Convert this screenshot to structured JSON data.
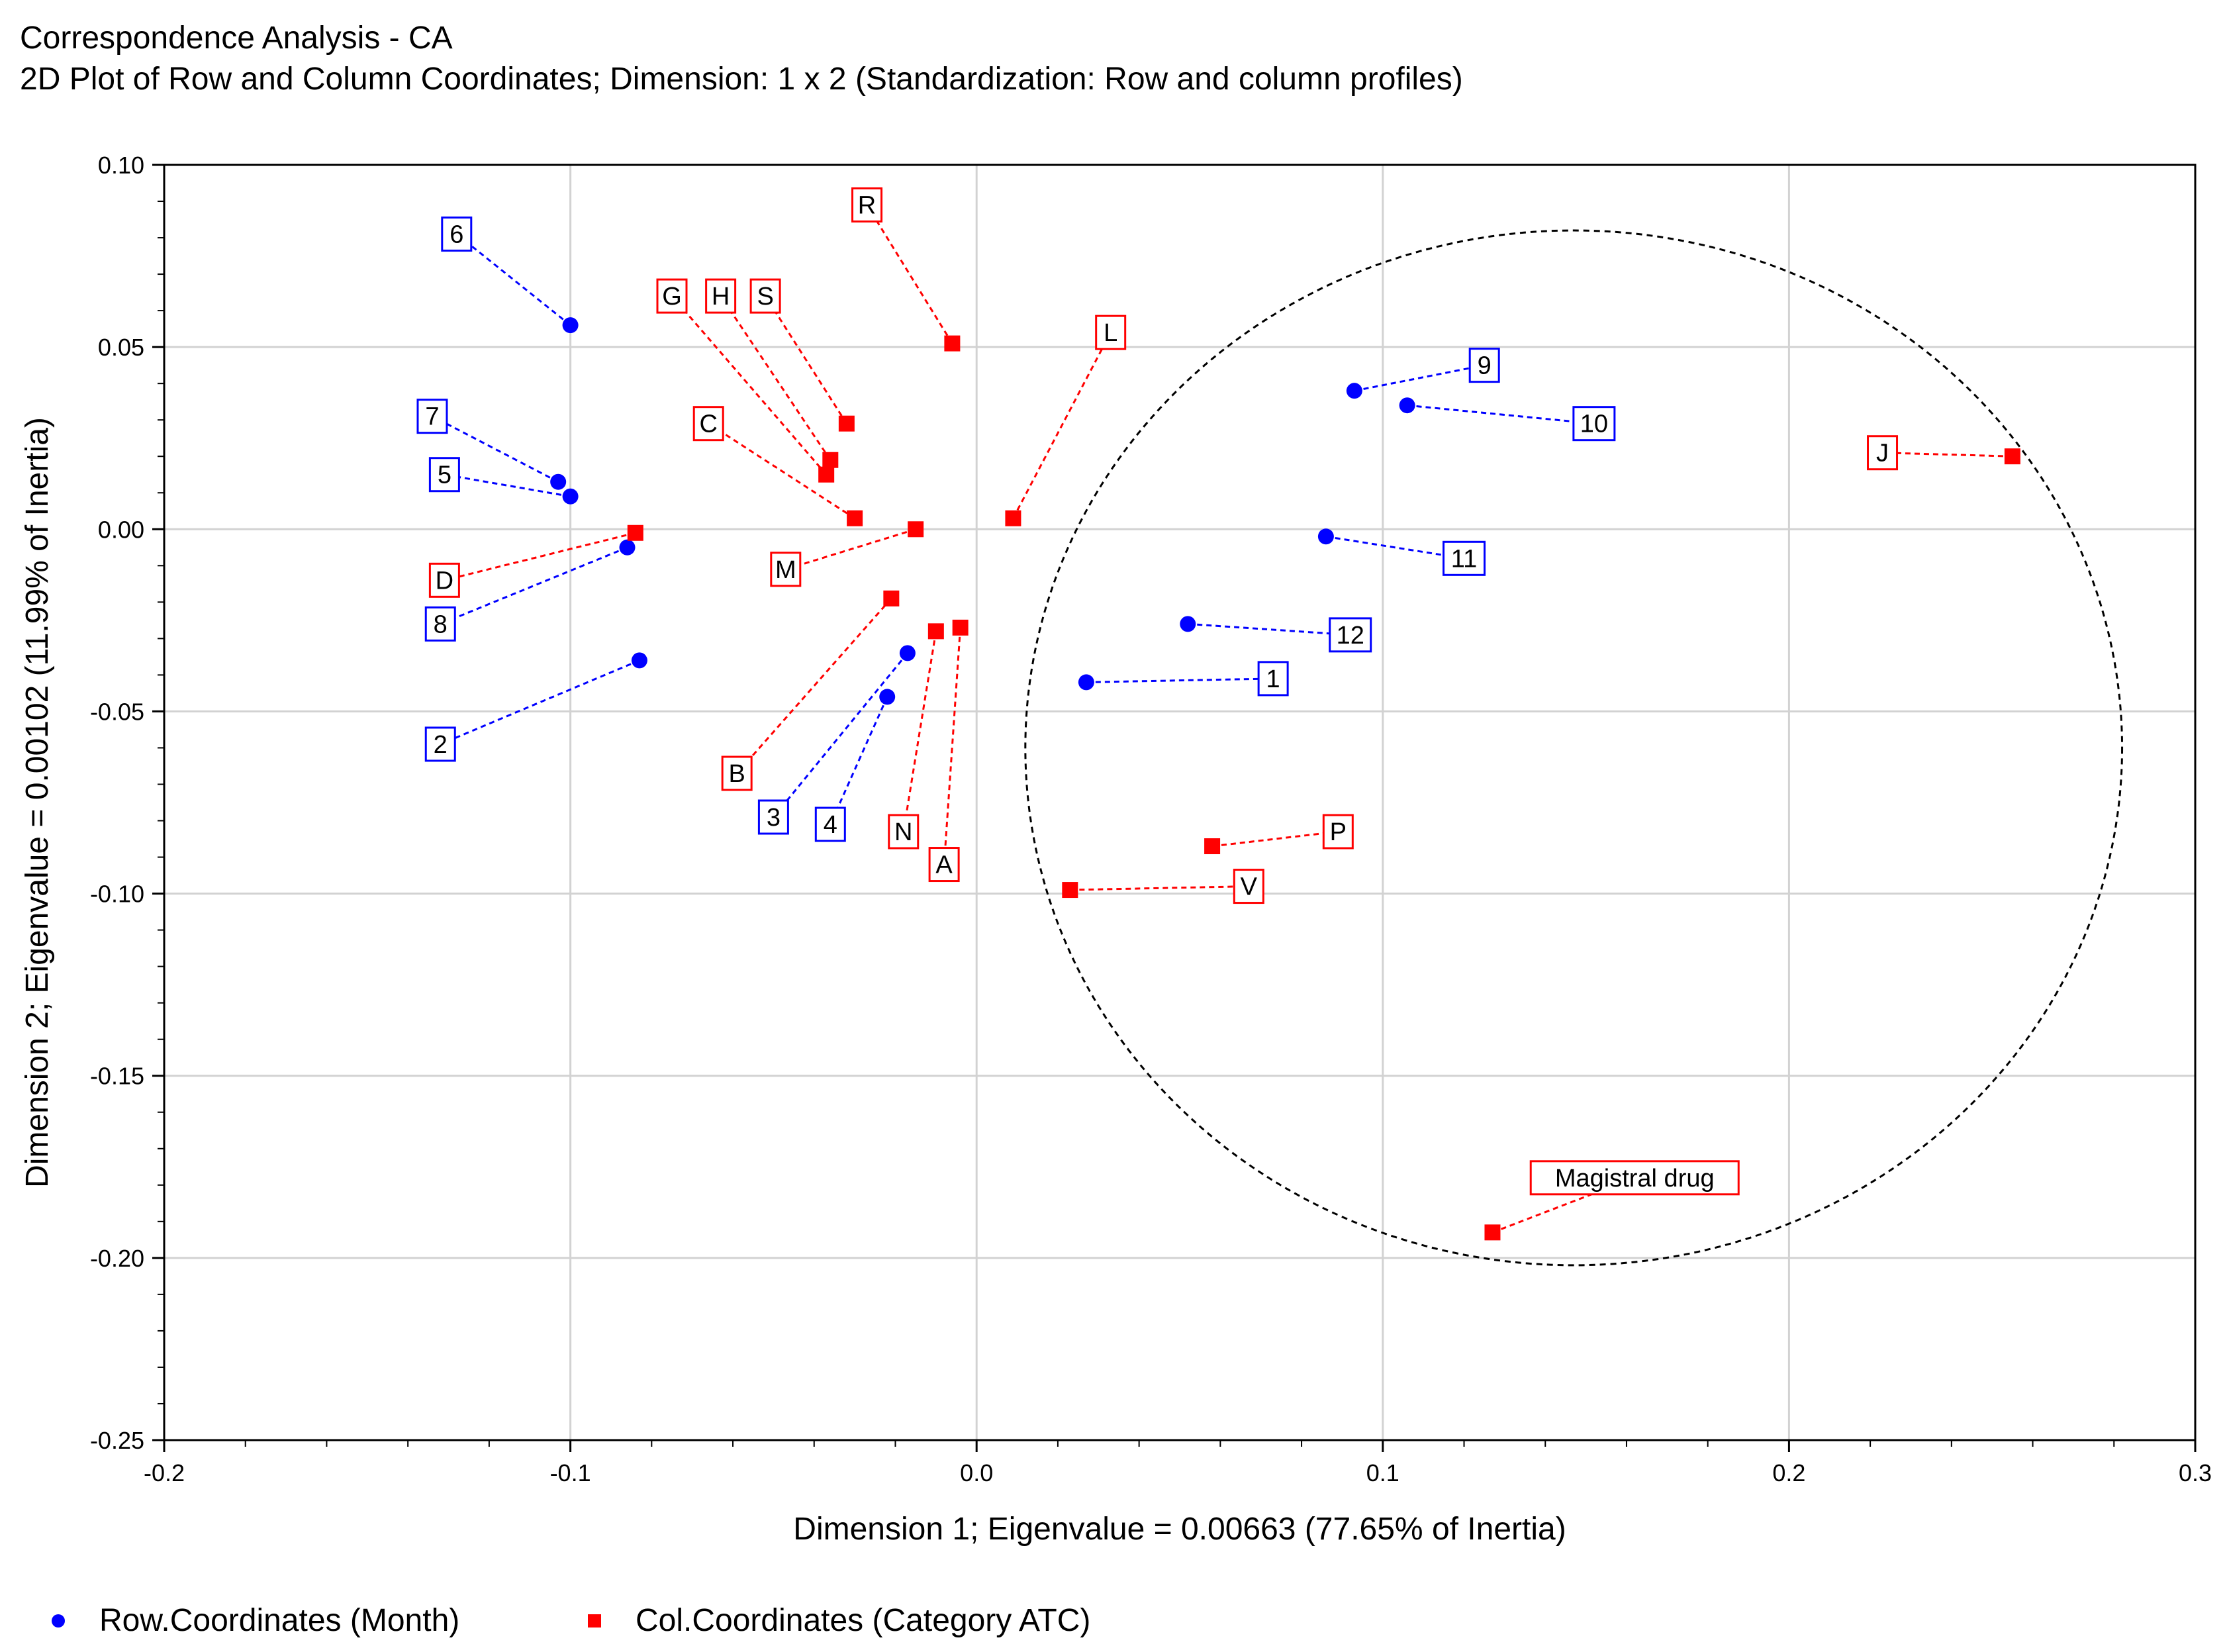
{
  "chart_data": {
    "type": "scatter",
    "title": "Correspondence Analysis - CA",
    "subtitle": "2D Plot of Row and Column Coordinates; Dimension: 1 x 2 (Standardization: Row and column profiles)",
    "xlabel": "Dimension 1; Eigenvalue =  0.00663 (77.65%  of Inertia)",
    "ylabel": "Dimension 2; Eigenvalue = 0.00102 (11.99% of Inertia)",
    "xlim": [
      -0.2,
      0.3
    ],
    "ylim": [
      -0.25,
      0.1
    ],
    "x_ticks": [
      "-0.2",
      "-0.1",
      "0.0",
      "0.1",
      "0.2",
      "0.3"
    ],
    "y_ticks": [
      "0.10",
      "0.05",
      "0.00",
      "-0.05",
      "-0.10",
      "-0.15",
      "-0.20",
      "-0.25"
    ],
    "grid": true,
    "series": [
      {
        "name": "Row.Coordinates (Month)",
        "marker": "circle",
        "color": "#0000ff",
        "points": [
          {
            "label": "1",
            "x": 0.027,
            "y": -0.042,
            "lx": 0.073,
            "ly": -0.041
          },
          {
            "label": "2",
            "x": -0.083,
            "y": -0.036,
            "lx": -0.132,
            "ly": -0.059
          },
          {
            "label": "3",
            "x": -0.017,
            "y": -0.034,
            "lx": -0.05,
            "ly": -0.079
          },
          {
            "label": "4",
            "x": -0.022,
            "y": -0.046,
            "lx": -0.036,
            "ly": -0.081
          },
          {
            "label": "5",
            "x": -0.1,
            "y": 0.009,
            "lx": -0.131,
            "ly": 0.015
          },
          {
            "label": "6",
            "x": -0.1,
            "y": 0.056,
            "lx": -0.128,
            "ly": 0.081
          },
          {
            "label": "7",
            "x": -0.103,
            "y": 0.013,
            "lx": -0.134,
            "ly": 0.031
          },
          {
            "label": "8",
            "x": -0.086,
            "y": -0.005,
            "lx": -0.132,
            "ly": -0.026
          },
          {
            "label": "9",
            "x": 0.093,
            "y": 0.038,
            "lx": 0.125,
            "ly": 0.045
          },
          {
            "label": "10",
            "x": 0.106,
            "y": 0.034,
            "lx": 0.152,
            "ly": 0.029
          },
          {
            "label": "11",
            "x": 0.086,
            "y": -0.002,
            "lx": 0.12,
            "ly": -0.008
          },
          {
            "label": "12",
            "x": 0.052,
            "y": -0.026,
            "lx": 0.092,
            "ly": -0.029
          }
        ]
      },
      {
        "name": "Col.Coordinates (Category ATC)",
        "marker": "square",
        "color": "#ff0000",
        "points": [
          {
            "label": "A",
            "x": -0.004,
            "y": -0.027,
            "lx": -0.008,
            "ly": -0.092
          },
          {
            "label": "B",
            "x": -0.021,
            "y": -0.019,
            "lx": -0.059,
            "ly": -0.067
          },
          {
            "label": "C",
            "x": -0.03,
            "y": 0.003,
            "lx": -0.066,
            "ly": 0.029
          },
          {
            "label": "D",
            "x": -0.084,
            "y": -0.001,
            "lx": -0.131,
            "ly": -0.014
          },
          {
            "label": "G",
            "x": -0.037,
            "y": 0.015,
            "lx": -0.075,
            "ly": 0.064
          },
          {
            "label": "H",
            "x": -0.036,
            "y": 0.019,
            "lx": -0.063,
            "ly": 0.064
          },
          {
            "label": "J",
            "x": 0.255,
            "y": 0.02,
            "lx": 0.223,
            "ly": 0.021
          },
          {
            "label": "L",
            "x": 0.009,
            "y": 0.003,
            "lx": 0.033,
            "ly": 0.054
          },
          {
            "label": "M",
            "x": -0.015,
            "y": 0.0,
            "lx": -0.047,
            "ly": -0.011
          },
          {
            "label": "N",
            "x": -0.01,
            "y": -0.028,
            "lx": -0.018,
            "ly": -0.083
          },
          {
            "label": "P",
            "x": 0.058,
            "y": -0.087,
            "lx": 0.089,
            "ly": -0.083
          },
          {
            "label": "R",
            "x": -0.006,
            "y": 0.051,
            "lx": -0.027,
            "ly": 0.089
          },
          {
            "label": "S",
            "x": -0.032,
            "y": 0.029,
            "lx": -0.052,
            "ly": 0.064
          },
          {
            "label": "V",
            "x": 0.023,
            "y": -0.099,
            "lx": 0.067,
            "ly": -0.098
          },
          {
            "label": "Magistral drug",
            "x": 0.127,
            "y": -0.193,
            "lx": 0.162,
            "ly": -0.178
          }
        ]
      }
    ],
    "annotations": [
      {
        "type": "dashed-circle",
        "cx": 0.147,
        "cy": -0.06,
        "rx": 0.135,
        "ry": 0.142
      }
    ]
  },
  "legend": {
    "row_label": "Row.Coordinates (Month)",
    "col_label": "Col.Coordinates (Category ATC)"
  }
}
